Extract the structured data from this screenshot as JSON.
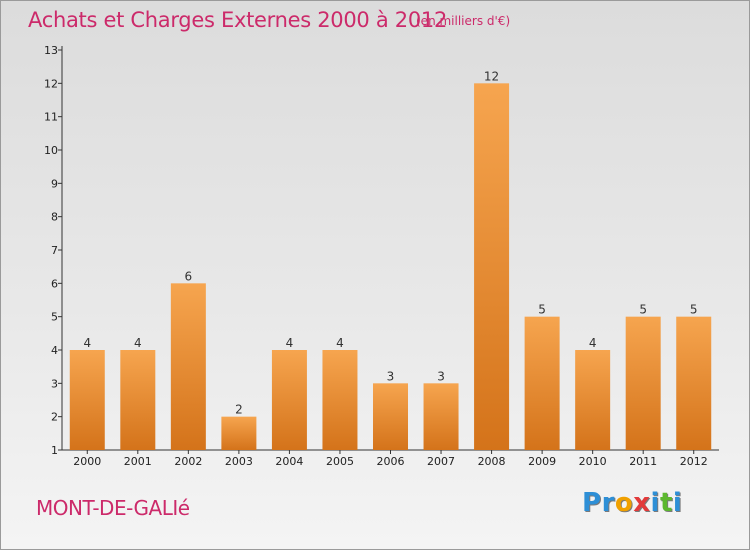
{
  "title": "Achats et Charges Externes 2000 à 2012",
  "unit_note": "(en milliers d'€)",
  "commune": "MONT-DE-GALIé",
  "logo": {
    "text": "Proxiti",
    "letters": [
      "P",
      "r",
      "o",
      "x",
      "i",
      "t",
      "i"
    ],
    "colors": [
      "#2e8fd6",
      "#2e8fd6",
      "#f0a000",
      "#e23a3a",
      "#2e8fd6",
      "#5cb82e",
      "#2e8fd6"
    ]
  },
  "colors": {
    "text_accent": "#cc2a6a",
    "bar_light": "#f6a54f",
    "bar_dark": "#d4731a"
  },
  "chart_data": {
    "type": "bar",
    "categories": [
      "2000",
      "2001",
      "2002",
      "2003",
      "2004",
      "2005",
      "2006",
      "2007",
      "2008",
      "2009",
      "2010",
      "2011",
      "2012"
    ],
    "values": [
      4,
      4,
      6,
      2,
      4,
      4,
      3,
      3,
      12,
      5,
      4,
      5,
      5
    ],
    "title": "Achats et Charges Externes 2000 à 2012",
    "xlabel": "",
    "ylabel": "",
    "ylim": [
      1,
      13
    ],
    "yticks": [
      1,
      2,
      3,
      4,
      5,
      6,
      7,
      8,
      9,
      10,
      11,
      12,
      13
    ],
    "grid": false,
    "data_labels": true
  }
}
